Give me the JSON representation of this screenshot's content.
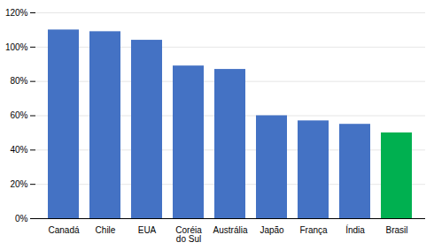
{
  "chart_data": {
    "type": "bar",
    "categories": [
      "Canadá",
      "Chile",
      "EUA",
      "Coréia\ndo Sul",
      "Austrália",
      "Japão",
      "França",
      "Índia",
      "Brasil"
    ],
    "values": [
      1.1,
      1.09,
      1.04,
      0.89,
      0.87,
      0.6,
      0.57,
      0.55,
      0.5
    ],
    "colors": [
      "#4472c4",
      "#4472c4",
      "#4472c4",
      "#4472c4",
      "#4472c4",
      "#4472c4",
      "#4472c4",
      "#4472c4",
      "#00b050"
    ],
    "ylim": [
      0,
      1.2
    ],
    "yticks": [
      {
        "value": 0,
        "label": "0%"
      },
      {
        "value": 0.2,
        "label": "20%"
      },
      {
        "value": 0.4,
        "label": "40%"
      },
      {
        "value": 0.6,
        "label": "60%"
      },
      {
        "value": 0.8,
        "label": "80%"
      },
      {
        "value": 1.0,
        "label": "100%"
      },
      {
        "value": 1.2,
        "label": "120%"
      }
    ],
    "grid": true
  }
}
